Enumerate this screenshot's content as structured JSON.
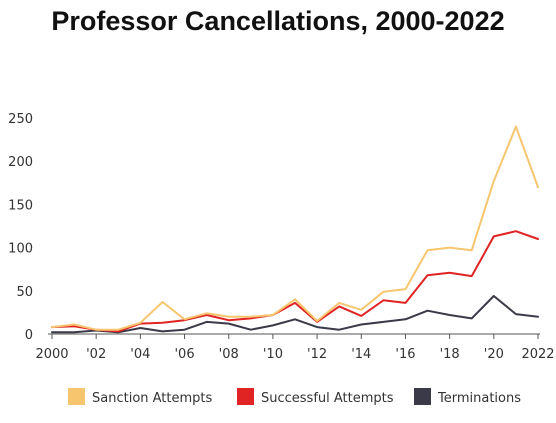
{
  "chart_data": {
    "type": "line",
    "title": "Professor Cancellations, 2000-2022",
    "xlabel": "",
    "ylabel": "",
    "x": [
      2000,
      2001,
      2002,
      2003,
      2004,
      2005,
      2006,
      2007,
      2008,
      2009,
      2010,
      2011,
      2012,
      2013,
      2014,
      2015,
      2016,
      2017,
      2018,
      2019,
      2020,
      2021,
      2022
    ],
    "x_tick_values": [
      2000,
      2002,
      2004,
      2006,
      2008,
      2010,
      2012,
      2014,
      2016,
      2018,
      2020,
      2022
    ],
    "x_tick_labels": [
      "2000",
      "'02",
      "'04",
      "'06",
      "'08",
      "'10",
      "'12",
      "'14",
      "'16",
      "'18",
      "'20",
      "2022"
    ],
    "ylim": [
      0,
      250
    ],
    "y_ticks": [
      0,
      50,
      100,
      150,
      200,
      250
    ],
    "grid": false,
    "legend_position": "bottom",
    "series": [
      {
        "name": "Sanction Attempts",
        "color": "#F7C56E",
        "values": [
          8,
          11,
          5,
          5,
          13,
          37,
          17,
          24,
          20,
          20,
          22,
          40,
          15,
          36,
          28,
          49,
          52,
          97,
          100,
          97,
          177,
          240,
          170
        ]
      },
      {
        "name": "Successful Attempts",
        "color": "#E02424",
        "values": [
          8,
          9,
          5,
          3,
          12,
          13,
          16,
          22,
          16,
          18,
          22,
          36,
          14,
          32,
          21,
          39,
          36,
          68,
          71,
          67,
          113,
          119,
          110
        ]
      },
      {
        "name": "Terminations",
        "color": "#3A3A48",
        "values": [
          2,
          2,
          4,
          2,
          7,
          3,
          5,
          14,
          12,
          5,
          10,
          17,
          8,
          5,
          11,
          14,
          17,
          27,
          22,
          18,
          44,
          23,
          20
        ]
      }
    ]
  }
}
